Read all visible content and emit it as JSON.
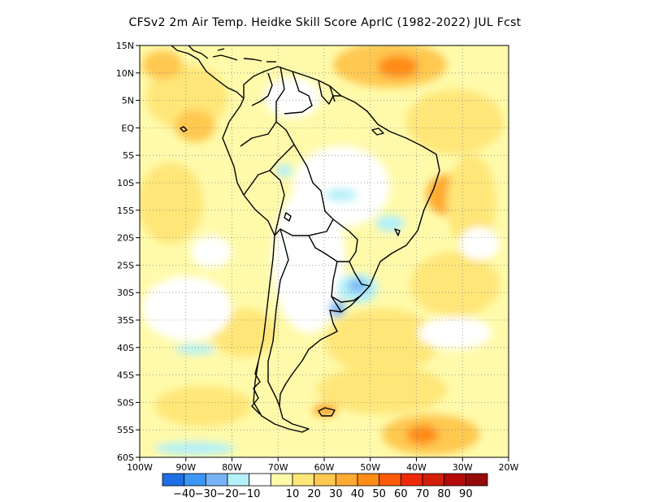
{
  "title": "CFSv2  2m Air Temp. Heidke Skill Score AprIC (1982-2022) JUL Fcst",
  "map": {
    "lon_range": [
      -100,
      -20
    ],
    "lat_range": [
      -60,
      15
    ],
    "lon_ticks": [
      {
        "lon": -100,
        "label": "100W"
      },
      {
        "lon": -90,
        "label": "90W"
      },
      {
        "lon": -80,
        "label": "80W"
      },
      {
        "lon": -70,
        "label": "70W"
      },
      {
        "lon": -60,
        "label": "60W"
      },
      {
        "lon": -50,
        "label": "50W"
      },
      {
        "lon": -40,
        "label": "40W"
      },
      {
        "lon": -30,
        "label": "30W"
      },
      {
        "lon": -20,
        "label": "20W"
      }
    ],
    "lat_ticks": [
      {
        "lat": 15,
        "label": "15N"
      },
      {
        "lat": 10,
        "label": "10N"
      },
      {
        "lat": 5,
        "label": "5N"
      },
      {
        "lat": 0,
        "label": "EQ"
      },
      {
        "lat": -5,
        "label": "5S"
      },
      {
        "lat": -10,
        "label": "10S"
      },
      {
        "lat": -15,
        "label": "15S"
      },
      {
        "lat": -20,
        "label": "20S"
      },
      {
        "lat": -25,
        "label": "25S"
      },
      {
        "lat": -30,
        "label": "30S"
      },
      {
        "lat": -35,
        "label": "35S"
      },
      {
        "lat": -40,
        "label": "40S"
      },
      {
        "lat": -45,
        "label": "45S"
      },
      {
        "lat": -50,
        "label": "50S"
      },
      {
        "lat": -55,
        "label": "55S"
      },
      {
        "lat": -60,
        "label": "60S"
      }
    ],
    "grid": true
  },
  "colorbar": {
    "colors": [
      "#1e6fe6",
      "#3c96f5",
      "#78b4f5",
      "#b4f0fa",
      "#ffffff",
      "#fffaaa",
      "#ffe678",
      "#ffc850",
      "#ffaa32",
      "#ff8c14",
      "#ff5a0a",
      "#f0280a",
      "#d21e0a",
      "#b40a0a",
      "#960a0a"
    ],
    "labels": [
      "-40",
      "-30",
      "-20",
      "-10",
      "10",
      "20",
      "30",
      "40",
      "50",
      "60",
      "70",
      "80",
      "90"
    ]
  },
  "chart_data": {
    "type": "heatmap",
    "title": "CFSv2  2m Air Temp. Heidke Skill Score AprIC (1982-2022) JUL Fcst",
    "x_range": [
      -100,
      -20
    ],
    "y_range": [
      -60,
      15
    ],
    "levels": [
      -40,
      -30,
      -20,
      -10,
      10,
      20,
      30,
      40,
      50,
      60,
      70,
      80,
      90
    ],
    "regions": [
      {
        "lon": -45,
        "lat": 11,
        "value": 55
      },
      {
        "lon": -92,
        "lat": 9,
        "value": 35
      },
      {
        "lon": -40,
        "lat": -9,
        "value": 45
      },
      {
        "lon": -42,
        "lat": -55,
        "value": 55
      },
      {
        "lon": -50,
        "lat": -28,
        "value": -20
      },
      {
        "lon": -57,
        "lat": -12,
        "value": -15
      },
      {
        "lon": -93,
        "lat": -42,
        "value": -15
      },
      {
        "lon": -93,
        "lat": -57,
        "value": -12
      }
    ]
  }
}
